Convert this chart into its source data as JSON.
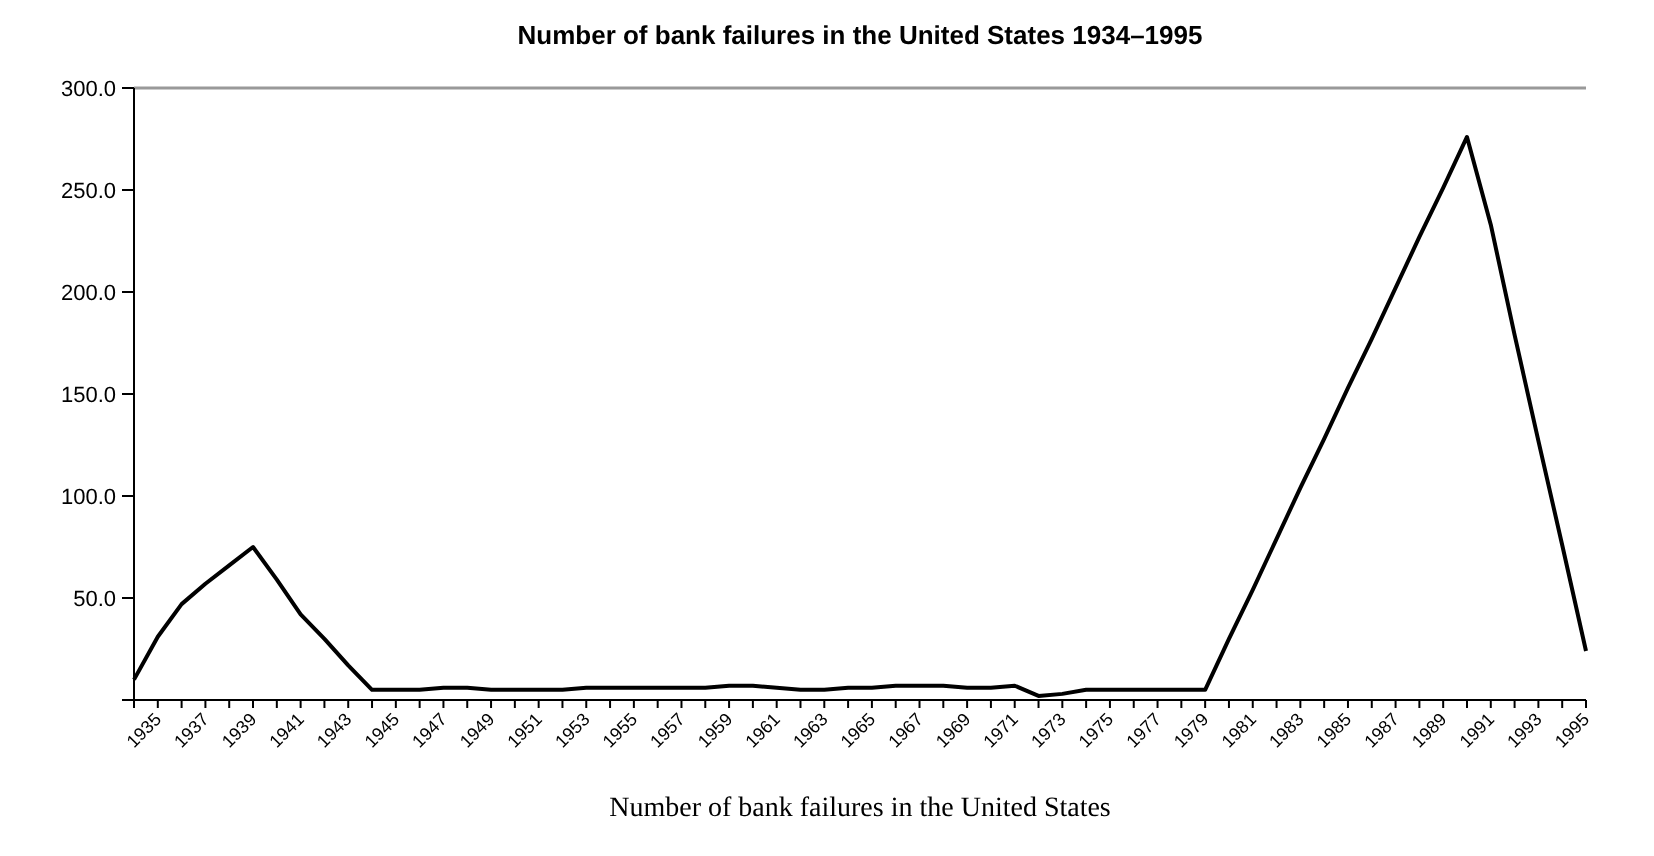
{
  "chart_data": {
    "type": "line",
    "title": "Number of bank failures in the United States 1934–1995",
    "annotations": [
      "Number of bank failures in the United States"
    ],
    "x": [
      1934,
      1935,
      1936,
      1937,
      1938,
      1939,
      1940,
      1941,
      1942,
      1943,
      1944,
      1945,
      1946,
      1947,
      1948,
      1949,
      1950,
      1951,
      1952,
      1953,
      1954,
      1955,
      1956,
      1957,
      1958,
      1959,
      1960,
      1961,
      1962,
      1963,
      1964,
      1965,
      1966,
      1967,
      1968,
      1969,
      1970,
      1971,
      1972,
      1973,
      1974,
      1975,
      1976,
      1977,
      1978,
      1979,
      1980,
      1981,
      1982,
      1983,
      1984,
      1985,
      1986,
      1987,
      1988,
      1989,
      1990,
      1991,
      1992,
      1993,
      1994,
      1995
    ],
    "series": [
      {
        "color": "#000000",
        "values": [
          10,
          31,
          47,
          57,
          66,
          75,
          59,
          42,
          30,
          17,
          5,
          5,
          5,
          6,
          6,
          5,
          5,
          5,
          5,
          6,
          6,
          6,
          6,
          6,
          6,
          7,
          7,
          6,
          5,
          5,
          6,
          6,
          7,
          7,
          7,
          6,
          6,
          7,
          2,
          3,
          5,
          5,
          5,
          5,
          5,
          5,
          30,
          54,
          79,
          104,
          128,
          153,
          177,
          202,
          227,
          251,
          276,
          233,
          179,
          127,
          76,
          24
        ]
      }
    ],
    "xlim": [
      1934,
      1995
    ],
    "xticks": [
      {
        "value": 1934,
        "label": null
      },
      1935,
      {
        "value": 1936,
        "label": null
      },
      1937,
      {
        "value": 1938,
        "label": null
      },
      1939,
      {
        "value": 1940,
        "label": null
      },
      1941,
      {
        "value": 1942,
        "label": null
      },
      1943,
      {
        "value": 1944,
        "label": null
      },
      1945,
      {
        "value": 1946,
        "label": null
      },
      1947,
      {
        "value": 1948,
        "label": null
      },
      1949,
      {
        "value": 1950,
        "label": null
      },
      1951,
      {
        "value": 1952,
        "label": null
      },
      1953,
      {
        "value": 1954,
        "label": null
      },
      1955,
      {
        "value": 1956,
        "label": null
      },
      1957,
      {
        "value": 1958,
        "label": null
      },
      1959,
      {
        "value": 1960,
        "label": null
      },
      1961,
      {
        "value": 1962,
        "label": null
      },
      1963,
      {
        "value": 1964,
        "label": null
      },
      1965,
      {
        "value": 1966,
        "label": null
      },
      1967,
      {
        "value": 1968,
        "label": null
      },
      1969,
      {
        "value": 1970,
        "label": null
      },
      1971,
      {
        "value": 1972,
        "label": null
      },
      1973,
      {
        "value": 1974,
        "label": null
      },
      1975,
      {
        "value": 1976,
        "label": null
      },
      1977,
      {
        "value": 1978,
        "label": null
      },
      1979,
      {
        "value": 1980,
        "label": null
      },
      1981,
      {
        "value": 1982,
        "label": null
      },
      1983,
      {
        "value": 1984,
        "label": null
      },
      1985,
      {
        "value": 1986,
        "label": null
      },
      1987,
      {
        "value": 1988,
        "label": null
      },
      1989,
      {
        "value": 1990,
        "label": null
      },
      1991,
      {
        "value": 1992,
        "label": null
      },
      1993,
      {
        "value": 1994,
        "label": null
      },
      1995
    ],
    "ylim": [
      0,
      300
    ],
    "yticks": [
      {
        "value": 0,
        "label": null
      },
      {
        "value": 50,
        "label": "50.0"
      },
      {
        "value": 100,
        "label": "100.0"
      },
      {
        "value": 150,
        "label": "150.0"
      },
      {
        "value": 200,
        "label": "200.0"
      },
      {
        "value": 250,
        "label": "250.0"
      },
      {
        "value": 300,
        "label": "300.0"
      }
    ],
    "grid": false
  }
}
